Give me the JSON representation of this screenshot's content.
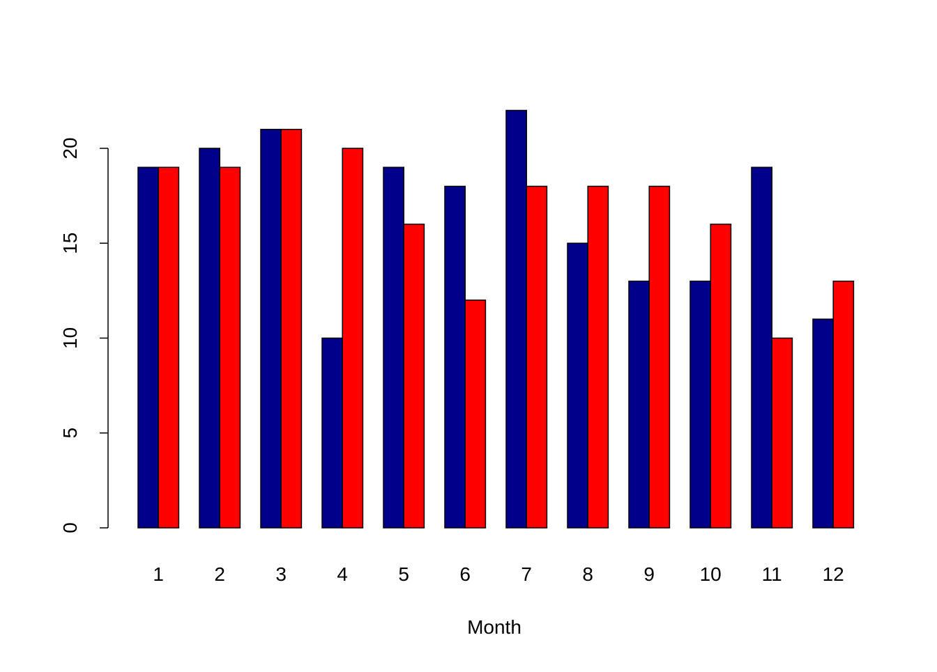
{
  "chart_data": {
    "type": "bar",
    "title": "",
    "xlabel": "Month",
    "ylabel": "",
    "categories": [
      "1",
      "2",
      "3",
      "4",
      "5",
      "6",
      "7",
      "8",
      "9",
      "10",
      "11",
      "12"
    ],
    "series": [
      {
        "values": [
          19,
          20,
          21,
          10,
          19,
          18,
          22,
          15,
          13,
          13,
          19,
          11
        ],
        "color": "#00008B"
      },
      {
        "values": [
          19,
          19,
          21,
          20,
          16,
          12,
          18,
          18,
          18,
          16,
          10,
          13
        ],
        "color": "#FF0000"
      }
    ],
    "yticks": [
      0,
      5,
      10,
      15,
      20
    ],
    "ylim": [
      0,
      22
    ],
    "grid": false,
    "legend": "none"
  }
}
